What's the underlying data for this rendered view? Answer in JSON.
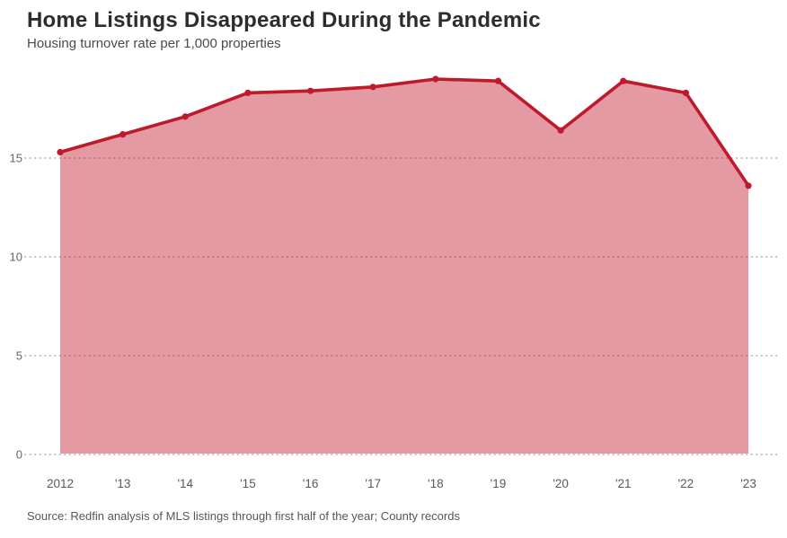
{
  "chart_data": {
    "type": "area",
    "title": "Home Listings Disappeared During the Pandemic",
    "subtitle": "Housing turnover rate per 1,000 properties",
    "source": "Source: Redfin analysis of MLS listings through first half of the year; County records",
    "categories": [
      "2012",
      "'13",
      "'14",
      "'15",
      "'16",
      "'17",
      "'18",
      "'19",
      "'20",
      "'21",
      "'22",
      "'23"
    ],
    "values": [
      15.3,
      16.2,
      17.1,
      18.3,
      18.4,
      18.6,
      19.0,
      18.9,
      16.4,
      18.9,
      18.3,
      13.6
    ],
    "xlabel": "",
    "ylabel": "",
    "ylim": [
      0,
      20
    ],
    "y_ticks": [
      0,
      5,
      10,
      15
    ],
    "grid": "horizontal-dotted",
    "legend": "none"
  },
  "theme": {
    "line_color": "#bf1a2c",
    "fill_color": "rgba(191,26,44,0.44)",
    "grid_color": "#b5b5b5",
    "title_color": "#2d2d2d",
    "subtitle_color": "#4a4a4a",
    "axis_label_color": "#595959",
    "source_color": "#565656",
    "background": "#ffffff"
  }
}
